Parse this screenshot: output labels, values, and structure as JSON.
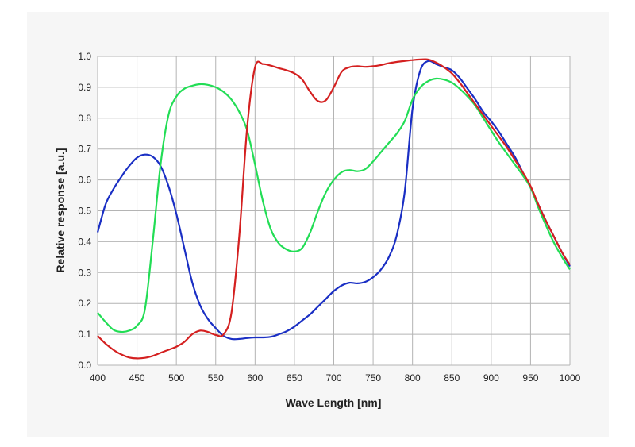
{
  "chart_data": {
    "type": "line",
    "title": "",
    "xlabel": "Wave Length [nm]",
    "ylabel": "Relative response  [a.u.]",
    "xlim": [
      400,
      1000
    ],
    "ylim": [
      0,
      1
    ],
    "grid": true,
    "legend": "none",
    "x_ticks": [
      400,
      450,
      500,
      550,
      600,
      650,
      700,
      750,
      800,
      850,
      900,
      950,
      1000
    ],
    "x_tick_labels": [
      "400",
      "450",
      "500",
      "550",
      "600",
      "650",
      "700",
      "750",
      "800",
      "850",
      "900",
      "950",
      "1000"
    ],
    "y_ticks": [
      0,
      0.1,
      0.2,
      0.3,
      0.4,
      0.5,
      0.6,
      0.7,
      0.8,
      0.9,
      1.0
    ],
    "y_tick_labels": [
      "0.0",
      "0.1",
      "0.2",
      "0.3",
      "0.4",
      "0.5",
      "0.6",
      "0.7",
      "0.8",
      "0.9",
      "1.0"
    ],
    "series": [
      {
        "name": "blue",
        "color": "#1a2fc4",
        "x": [
          400,
          410,
          420,
          430,
          440,
          450,
          460,
          470,
          480,
          490,
          500,
          510,
          520,
          530,
          540,
          550,
          560,
          570,
          580,
          590,
          600,
          610,
          620,
          630,
          640,
          650,
          660,
          670,
          680,
          690,
          700,
          710,
          720,
          730,
          740,
          750,
          760,
          770,
          780,
          790,
          800,
          810,
          820,
          830,
          840,
          850,
          860,
          870,
          880,
          890,
          900,
          910,
          920,
          930,
          940,
          950,
          960,
          970,
          980,
          990,
          1000
        ],
        "y": [
          0.43,
          0.52,
          0.57,
          0.61,
          0.645,
          0.672,
          0.682,
          0.675,
          0.645,
          0.58,
          0.49,
          0.38,
          0.27,
          0.195,
          0.15,
          0.12,
          0.095,
          0.085,
          0.085,
          0.088,
          0.09,
          0.09,
          0.092,
          0.1,
          0.11,
          0.125,
          0.145,
          0.165,
          0.19,
          0.215,
          0.24,
          0.258,
          0.267,
          0.265,
          0.27,
          0.285,
          0.31,
          0.35,
          0.42,
          0.56,
          0.83,
          0.955,
          0.985,
          0.975,
          0.965,
          0.955,
          0.93,
          0.895,
          0.86,
          0.82,
          0.79,
          0.755,
          0.715,
          0.675,
          0.625,
          0.575,
          0.52,
          0.465,
          0.415,
          0.365,
          0.32
        ]
      },
      {
        "name": "green",
        "color": "#22dd55",
        "x": [
          400,
          410,
          420,
          430,
          440,
          450,
          460,
          470,
          480,
          490,
          500,
          510,
          520,
          530,
          540,
          550,
          560,
          570,
          580,
          590,
          600,
          610,
          620,
          630,
          640,
          650,
          660,
          670,
          680,
          690,
          700,
          710,
          720,
          730,
          740,
          750,
          760,
          770,
          780,
          790,
          800,
          810,
          820,
          830,
          840,
          850,
          860,
          870,
          880,
          890,
          900,
          910,
          920,
          930,
          940,
          950,
          960,
          970,
          980,
          990,
          1000
        ],
        "y": [
          0.17,
          0.14,
          0.115,
          0.108,
          0.112,
          0.128,
          0.18,
          0.4,
          0.65,
          0.81,
          0.87,
          0.895,
          0.905,
          0.91,
          0.908,
          0.9,
          0.885,
          0.86,
          0.82,
          0.76,
          0.65,
          0.53,
          0.44,
          0.395,
          0.375,
          0.368,
          0.38,
          0.43,
          0.5,
          0.56,
          0.6,
          0.625,
          0.632,
          0.628,
          0.635,
          0.66,
          0.69,
          0.72,
          0.75,
          0.79,
          0.86,
          0.9,
          0.92,
          0.928,
          0.925,
          0.915,
          0.895,
          0.87,
          0.84,
          0.8,
          0.76,
          0.72,
          0.685,
          0.65,
          0.615,
          0.575,
          0.51,
          0.45,
          0.395,
          0.35,
          0.31
        ]
      },
      {
        "name": "red",
        "color": "#d42020",
        "x": [
          400,
          410,
          420,
          430,
          440,
          450,
          460,
          470,
          480,
          490,
          500,
          510,
          520,
          530,
          540,
          550,
          560,
          570,
          580,
          590,
          600,
          610,
          620,
          630,
          640,
          650,
          660,
          670,
          680,
          690,
          700,
          710,
          720,
          730,
          740,
          750,
          760,
          770,
          780,
          790,
          800,
          810,
          820,
          830,
          840,
          850,
          860,
          870,
          880,
          890,
          900,
          910,
          920,
          930,
          940,
          950,
          960,
          970,
          980,
          990,
          1000
        ],
        "y": [
          0.095,
          0.07,
          0.05,
          0.035,
          0.025,
          0.022,
          0.024,
          0.03,
          0.04,
          0.05,
          0.06,
          0.075,
          0.1,
          0.112,
          0.108,
          0.098,
          0.1,
          0.17,
          0.42,
          0.77,
          0.965,
          0.975,
          0.97,
          0.962,
          0.955,
          0.945,
          0.925,
          0.885,
          0.855,
          0.858,
          0.9,
          0.95,
          0.965,
          0.968,
          0.966,
          0.968,
          0.972,
          0.978,
          0.982,
          0.985,
          0.988,
          0.99,
          0.99,
          0.98,
          0.965,
          0.945,
          0.915,
          0.88,
          0.845,
          0.81,
          0.775,
          0.74,
          0.705,
          0.665,
          0.625,
          0.58,
          0.52,
          0.465,
          0.415,
          0.365,
          0.325
        ]
      }
    ]
  }
}
